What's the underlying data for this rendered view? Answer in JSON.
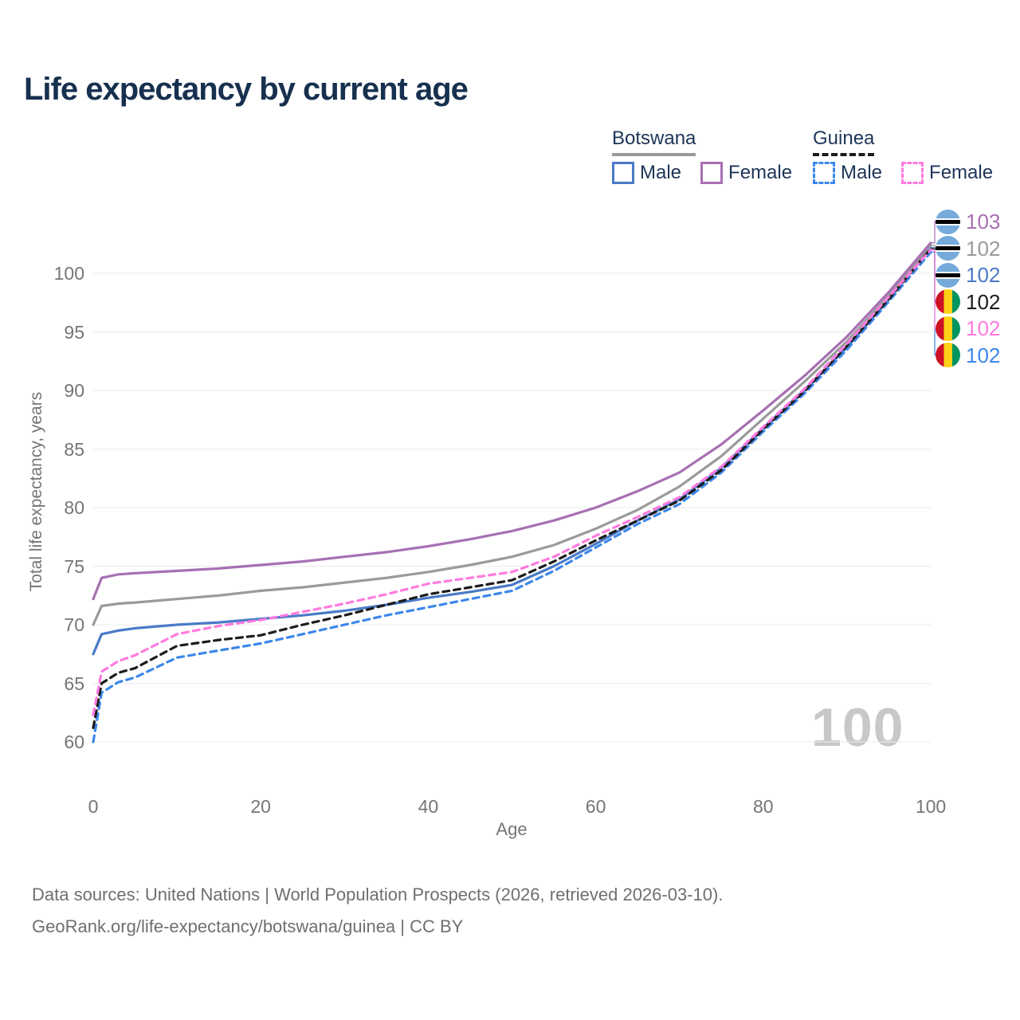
{
  "header": {
    "title": "Life expectancy by current age"
  },
  "legend": {
    "groups": [
      {
        "country": "Botswana",
        "line_style": "solid",
        "line_color": "#9a9a9a",
        "items": [
          {
            "label": "Male",
            "color": "#4a7ac7",
            "dashed": false
          },
          {
            "label": "Female",
            "color": "#a770b2",
            "dashed": false
          }
        ]
      },
      {
        "country": "Guinea",
        "line_style": "dashed",
        "line_color": "#1c1c1c",
        "items": [
          {
            "label": "Male",
            "color": "#3d87ea",
            "dashed": true
          },
          {
            "label": "Female",
            "color": "#ff7bdf",
            "dashed": true
          }
        ]
      }
    ]
  },
  "chart_data": {
    "type": "line",
    "title": "Life expectancy by current age",
    "xlabel": "Age",
    "ylabel": "Total life expectancy, years",
    "xlim": [
      0,
      100
    ],
    "ylim": [
      58,
      104
    ],
    "x_ticks": [
      0,
      20,
      40,
      60,
      80,
      100
    ],
    "y_ticks": [
      60,
      65,
      70,
      75,
      80,
      85,
      90,
      95,
      100
    ],
    "grid": "horizontal",
    "legend_position": "top-right",
    "watermark": "100",
    "x": [
      0,
      1,
      3,
      5,
      10,
      15,
      20,
      25,
      30,
      35,
      40,
      45,
      50,
      55,
      60,
      65,
      70,
      75,
      80,
      85,
      90,
      95,
      100
    ],
    "series": [
      {
        "id": "botswana-male",
        "name": "Botswana Male",
        "country": "Botswana",
        "sex": "Male",
        "color": "#4a7ac7",
        "dash": null,
        "flag": "botswana",
        "row": 2,
        "end_label": "102",
        "values": [
          67.5,
          69.2,
          69.5,
          69.7,
          70.0,
          70.2,
          70.5,
          70.8,
          71.2,
          71.7,
          72.3,
          72.8,
          73.4,
          75.0,
          76.9,
          78.9,
          80.7,
          83.4,
          86.8,
          90.1,
          93.7,
          97.8,
          102.2
        ]
      },
      {
        "id": "botswana-all",
        "name": "Botswana",
        "country": "Botswana",
        "sex": "Both",
        "color": "#9a9a9a",
        "dash": null,
        "flag": "botswana",
        "row": 1,
        "end_label": "102",
        "values": [
          70.0,
          71.6,
          71.8,
          71.9,
          72.2,
          72.5,
          72.9,
          73.2,
          73.6,
          74.0,
          74.5,
          75.1,
          75.8,
          76.8,
          78.2,
          79.8,
          81.8,
          84.4,
          87.6,
          90.8,
          94.2,
          98.1,
          102.4
        ]
      },
      {
        "id": "botswana-female",
        "name": "Botswana Female",
        "country": "Botswana",
        "sex": "Female",
        "color": "#a770b2",
        "dash": null,
        "flag": "botswana",
        "row": 0,
        "end_label": "103",
        "values": [
          72.2,
          74.0,
          74.3,
          74.4,
          74.6,
          74.8,
          75.1,
          75.4,
          75.8,
          76.2,
          76.7,
          77.3,
          78.0,
          78.9,
          80.0,
          81.4,
          83.0,
          85.4,
          88.3,
          91.3,
          94.6,
          98.4,
          102.6
        ]
      },
      {
        "id": "guinea-male",
        "name": "Guinea Male",
        "country": "Guinea",
        "sex": "Male",
        "color": "#3d87ea",
        "dash": "8 6",
        "flag": "guinea",
        "row": 5,
        "end_label": "102",
        "values": [
          60.0,
          64.2,
          65.1,
          65.5,
          67.2,
          67.8,
          68.4,
          69.2,
          70.0,
          70.8,
          71.5,
          72.2,
          72.9,
          74.6,
          76.6,
          78.6,
          80.3,
          83.0,
          86.5,
          89.8,
          93.5,
          97.6,
          101.8
        ]
      },
      {
        "id": "guinea-all",
        "name": "Guinea",
        "country": "Guinea",
        "sex": "Both",
        "color": "#1c1c1c",
        "dash": "8 6",
        "flag": "guinea",
        "row": 3,
        "end_label": "102",
        "values": [
          61.2,
          65.0,
          65.9,
          66.3,
          68.2,
          68.7,
          69.1,
          70.0,
          70.8,
          71.7,
          72.6,
          73.2,
          73.8,
          75.4,
          77.2,
          78.9,
          80.6,
          83.2,
          86.7,
          90.0,
          93.8,
          97.8,
          102.1
        ]
      },
      {
        "id": "guinea-female",
        "name": "Guinea Female",
        "country": "Guinea",
        "sex": "Female",
        "color": "#ff7bdf",
        "dash": "8 6",
        "flag": "guinea",
        "row": 4,
        "end_label": "102",
        "values": [
          62.3,
          66.0,
          66.9,
          67.4,
          69.2,
          69.9,
          70.4,
          71.1,
          71.8,
          72.6,
          73.5,
          74.0,
          74.5,
          75.8,
          77.6,
          79.2,
          80.9,
          83.5,
          86.9,
          90.2,
          94.0,
          98.0,
          102.0
        ]
      }
    ]
  },
  "footer": {
    "line1": "Data sources: United Nations | World Population Prospects (2026, retrieved 2026-03-10).",
    "line2": "GeoRank.org/life-expectancy/botswana/guinea | CC BY"
  }
}
